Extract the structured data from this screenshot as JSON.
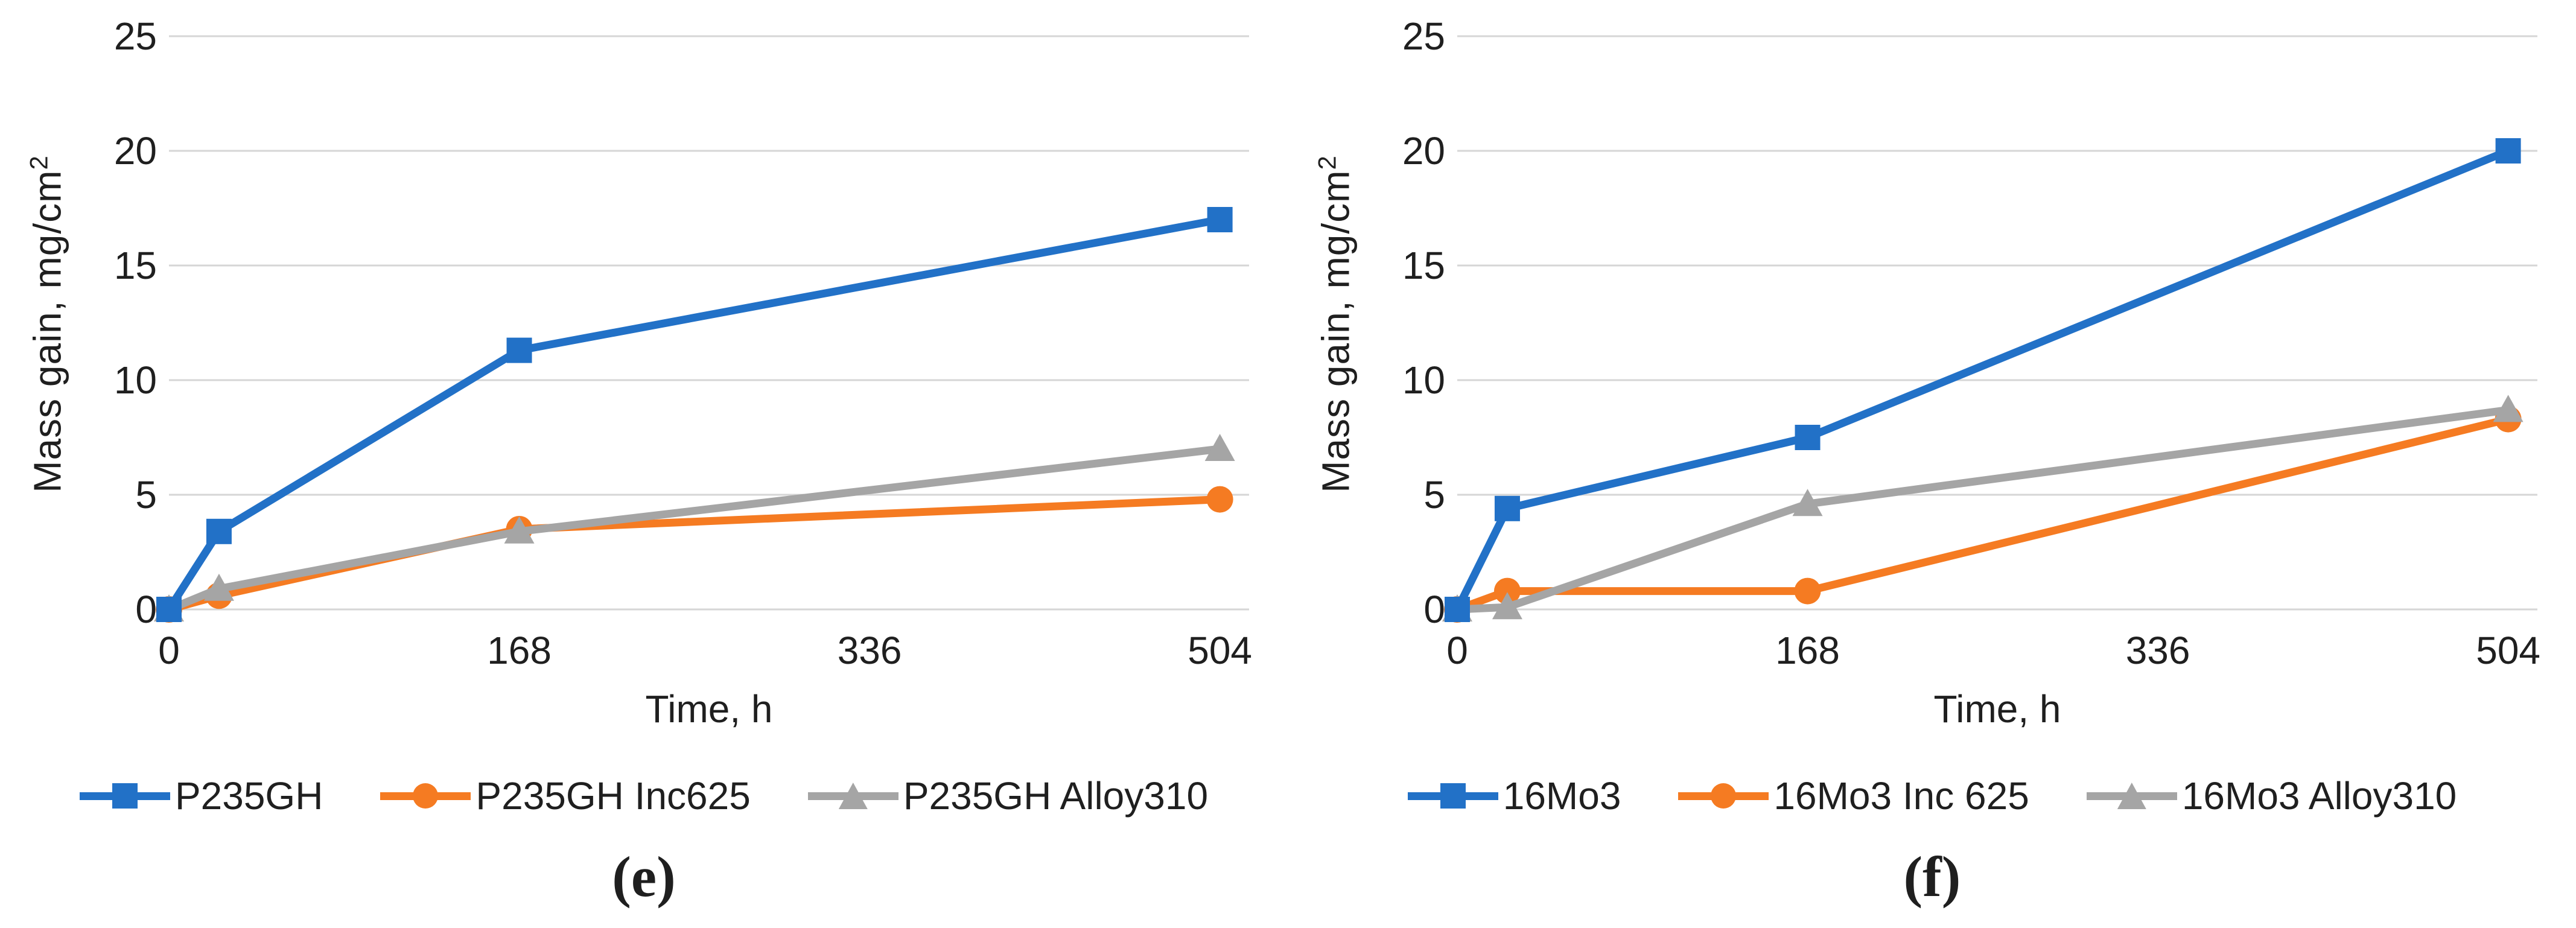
{
  "styles": {
    "grid_color": "#d6d6d6",
    "text_color": "#1f1f1f",
    "background": "#ffffff",
    "series_blue": "#2271c7",
    "series_orange": "#f57b22",
    "series_gray": "#a5a5a5"
  },
  "chart_data": [
    {
      "type": "line",
      "caption": "(e)",
      "xlabel": "Time, h",
      "ylabel": "Mass gain, mg/cm²",
      "ylabel_base": "Mass gain, mg/cm",
      "ylabel_sup": "2",
      "x": [
        0,
        24,
        168,
        504
      ],
      "x_ticks": [
        0,
        168,
        336,
        504
      ],
      "xlim": [
        0,
        518
      ],
      "ylim": [
        0,
        25
      ],
      "y_tick_step": 5,
      "grid": "horizontal",
      "legend_position": "bottom",
      "series": [
        {
          "name": "P235GH",
          "marker": "square",
          "color": "#2271c7",
          "values": [
            0,
            3.4,
            11.3,
            17
          ]
        },
        {
          "name": "P235GH Inc625",
          "marker": "circle",
          "color": "#f57b22",
          "values": [
            0,
            0.6,
            3.5,
            4.8
          ]
        },
        {
          "name": "P235GH Alloy310",
          "marker": "triangle",
          "color": "#a5a5a5",
          "values": [
            0,
            0.9,
            3.4,
            7
          ]
        }
      ]
    },
    {
      "type": "line",
      "caption": "(f)",
      "xlabel": "Time, h",
      "ylabel": "Mass gain, mg/cm²",
      "ylabel_base": "Mass gain, mg/cm",
      "ylabel_sup": "2",
      "x": [
        0,
        24,
        168,
        504
      ],
      "x_ticks": [
        0,
        168,
        336,
        504
      ],
      "xlim": [
        0,
        518
      ],
      "ylim": [
        0,
        25
      ],
      "y_tick_step": 5,
      "grid": "horizontal",
      "legend_position": "bottom",
      "series": [
        {
          "name": "16Mo3",
          "marker": "square",
          "color": "#2271c7",
          "values": [
            0,
            4.4,
            7.5,
            20
          ]
        },
        {
          "name": "16Mo3 Inc 625",
          "marker": "circle",
          "color": "#f57b22",
          "values": [
            0,
            0.8,
            0.8,
            8.3
          ]
        },
        {
          "name": "16Mo3 Alloy310",
          "marker": "triangle",
          "color": "#a5a5a5",
          "values": [
            0,
            0.1,
            4.6,
            8.7
          ]
        }
      ]
    }
  ]
}
